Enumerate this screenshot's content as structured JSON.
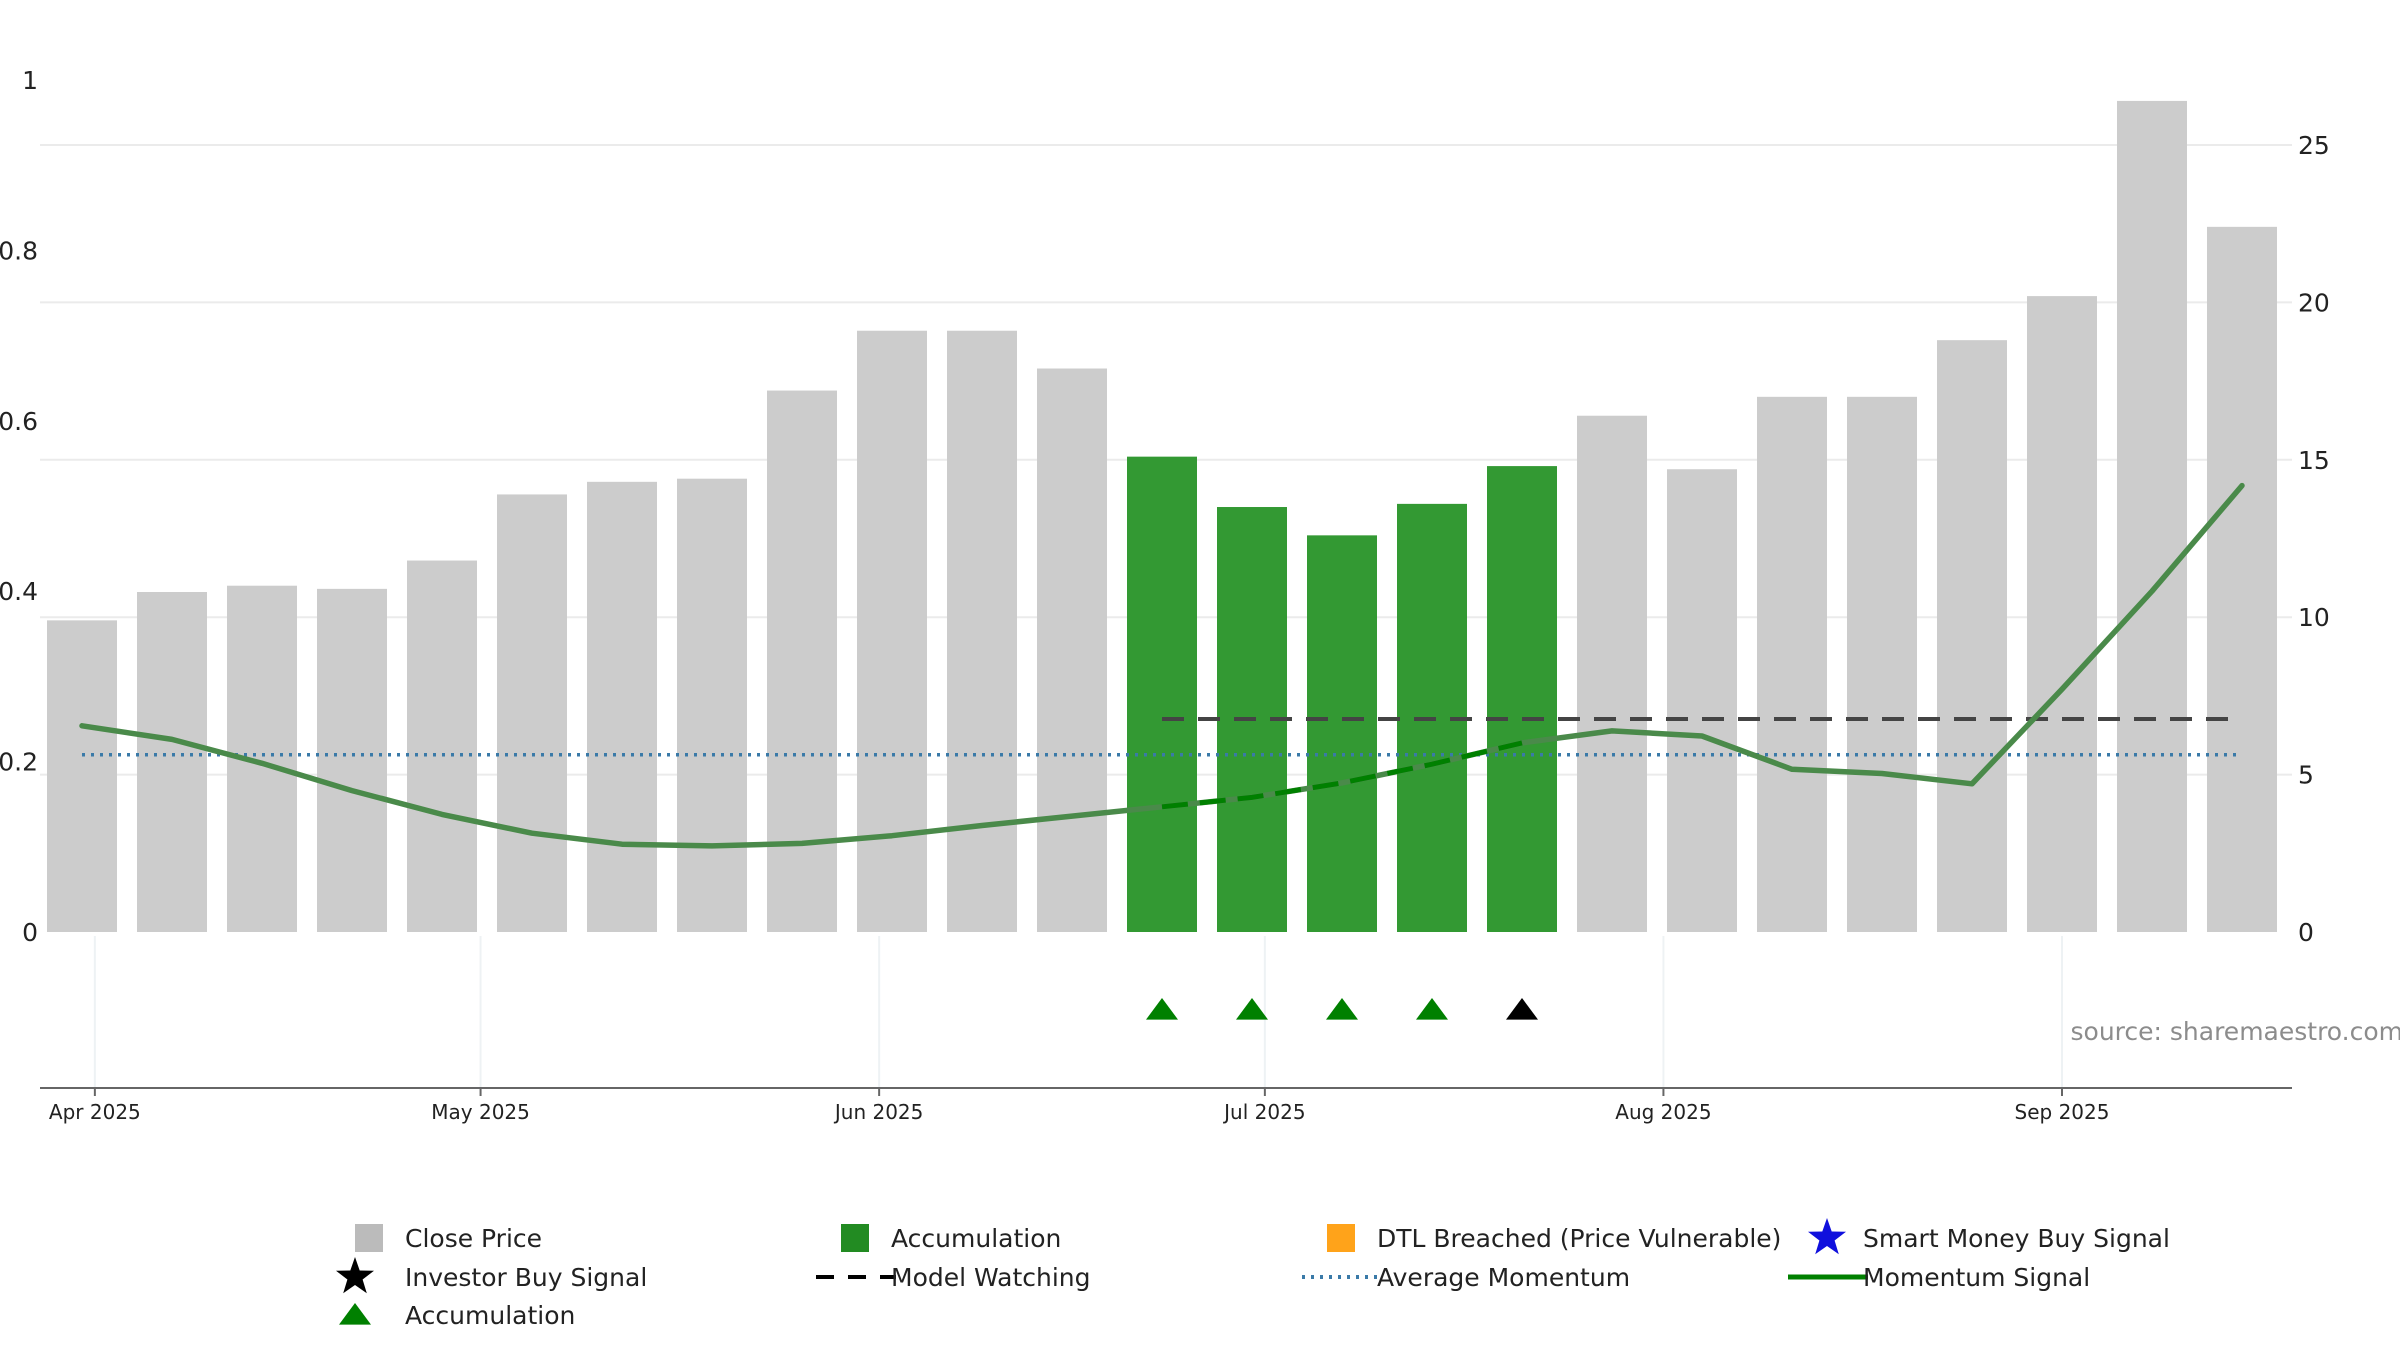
{
  "chart_data": {
    "type": "bar",
    "weeks": [
      "2025-03-31",
      "2025-04-07",
      "2025-04-14",
      "2025-04-21",
      "2025-04-28",
      "2025-05-05",
      "2025-05-12",
      "2025-05-19",
      "2025-05-26",
      "2025-06-02",
      "2025-06-09",
      "2025-06-16",
      "2025-06-23",
      "2025-06-30",
      "2025-07-07",
      "2025-07-14",
      "2025-07-21",
      "2025-07-28",
      "2025-08-04",
      "2025-08-11",
      "2025-08-18",
      "2025-08-25",
      "2025-09-01",
      "2025-09-08",
      "2025-09-15"
    ],
    "close_price": [
      9.9,
      10.8,
      11.0,
      10.9,
      11.8,
      13.9,
      14.3,
      14.4,
      17.2,
      19.1,
      19.1,
      17.9,
      15.1,
      13.5,
      12.6,
      13.6,
      14.8,
      16.4,
      14.7,
      17.0,
      17.0,
      18.8,
      20.2,
      26.4,
      22.4
    ],
    "accumulation_weeks": [
      "2025-06-23",
      "2025-06-30",
      "2025-07-07",
      "2025-07-14",
      "2025-07-21"
    ],
    "momentum_signal": [
      0.242,
      0.226,
      0.198,
      0.166,
      0.138,
      0.116,
      0.103,
      0.101,
      0.104,
      0.113,
      0.125,
      0.136,
      0.147,
      0.158,
      0.175,
      0.197,
      0.222,
      0.236,
      0.23,
      0.191,
      0.186,
      0.174,
      0.285,
      0.4,
      0.524
    ],
    "average_momentum": 0.208,
    "model_watching": {
      "from": "2025-06-23",
      "to": "2025-09-15",
      "value": 0.25
    },
    "accumulation_markers": [
      "2025-06-23",
      "2025-06-30",
      "2025-07-07",
      "2025-07-14"
    ],
    "investor_buy_markers": [
      "2025-07-21"
    ],
    "left_axis": {
      "ylim": [
        0,
        1
      ],
      "ticks": [
        "0",
        "0.2",
        "0.4",
        "0.6",
        "0.8",
        "1"
      ]
    },
    "right_axis": {
      "ylim": [
        0,
        27.7
      ],
      "ticks": [
        "0",
        "5",
        "10",
        "15",
        "20",
        "25"
      ]
    },
    "x_ticks": [
      {
        "date": "2025-04-01",
        "label": "Apr 2025"
      },
      {
        "date": "2025-05-01",
        "label": "May 2025"
      },
      {
        "date": "2025-06-01",
        "label": "Jun 2025"
      },
      {
        "date": "2025-07-01",
        "label": "Jul 2025"
      },
      {
        "date": "2025-08-01",
        "label": "Aug 2025"
      },
      {
        "date": "2025-09-01",
        "label": "Sep 2025"
      }
    ],
    "grid": true,
    "legend_position": "bottom",
    "legend": [
      [
        "Close Price",
        "Accumulation",
        "DTL Breached (Price Vulnerable)",
        "Smart Money Buy Signal"
      ],
      [
        "Investor Buy Signal",
        "Model Watching",
        "Average Momentum",
        "Momentum Signal"
      ],
      [
        "Accumulation"
      ]
    ],
    "source": "source: sharemaestro.com",
    "colors": {
      "close_price": "#cccccc",
      "accumulation_bar": "#339933",
      "momentum": "#4a8a4a",
      "momentum_dash": "#008000",
      "average_momentum": "#3a7aa8",
      "model_watching": "#444444",
      "accumulation_marker": "#008000",
      "investor_marker": "#000000",
      "dtl": "#ffa31a",
      "smart_money": "#1010dd",
      "grid": "#ebebeb"
    }
  }
}
